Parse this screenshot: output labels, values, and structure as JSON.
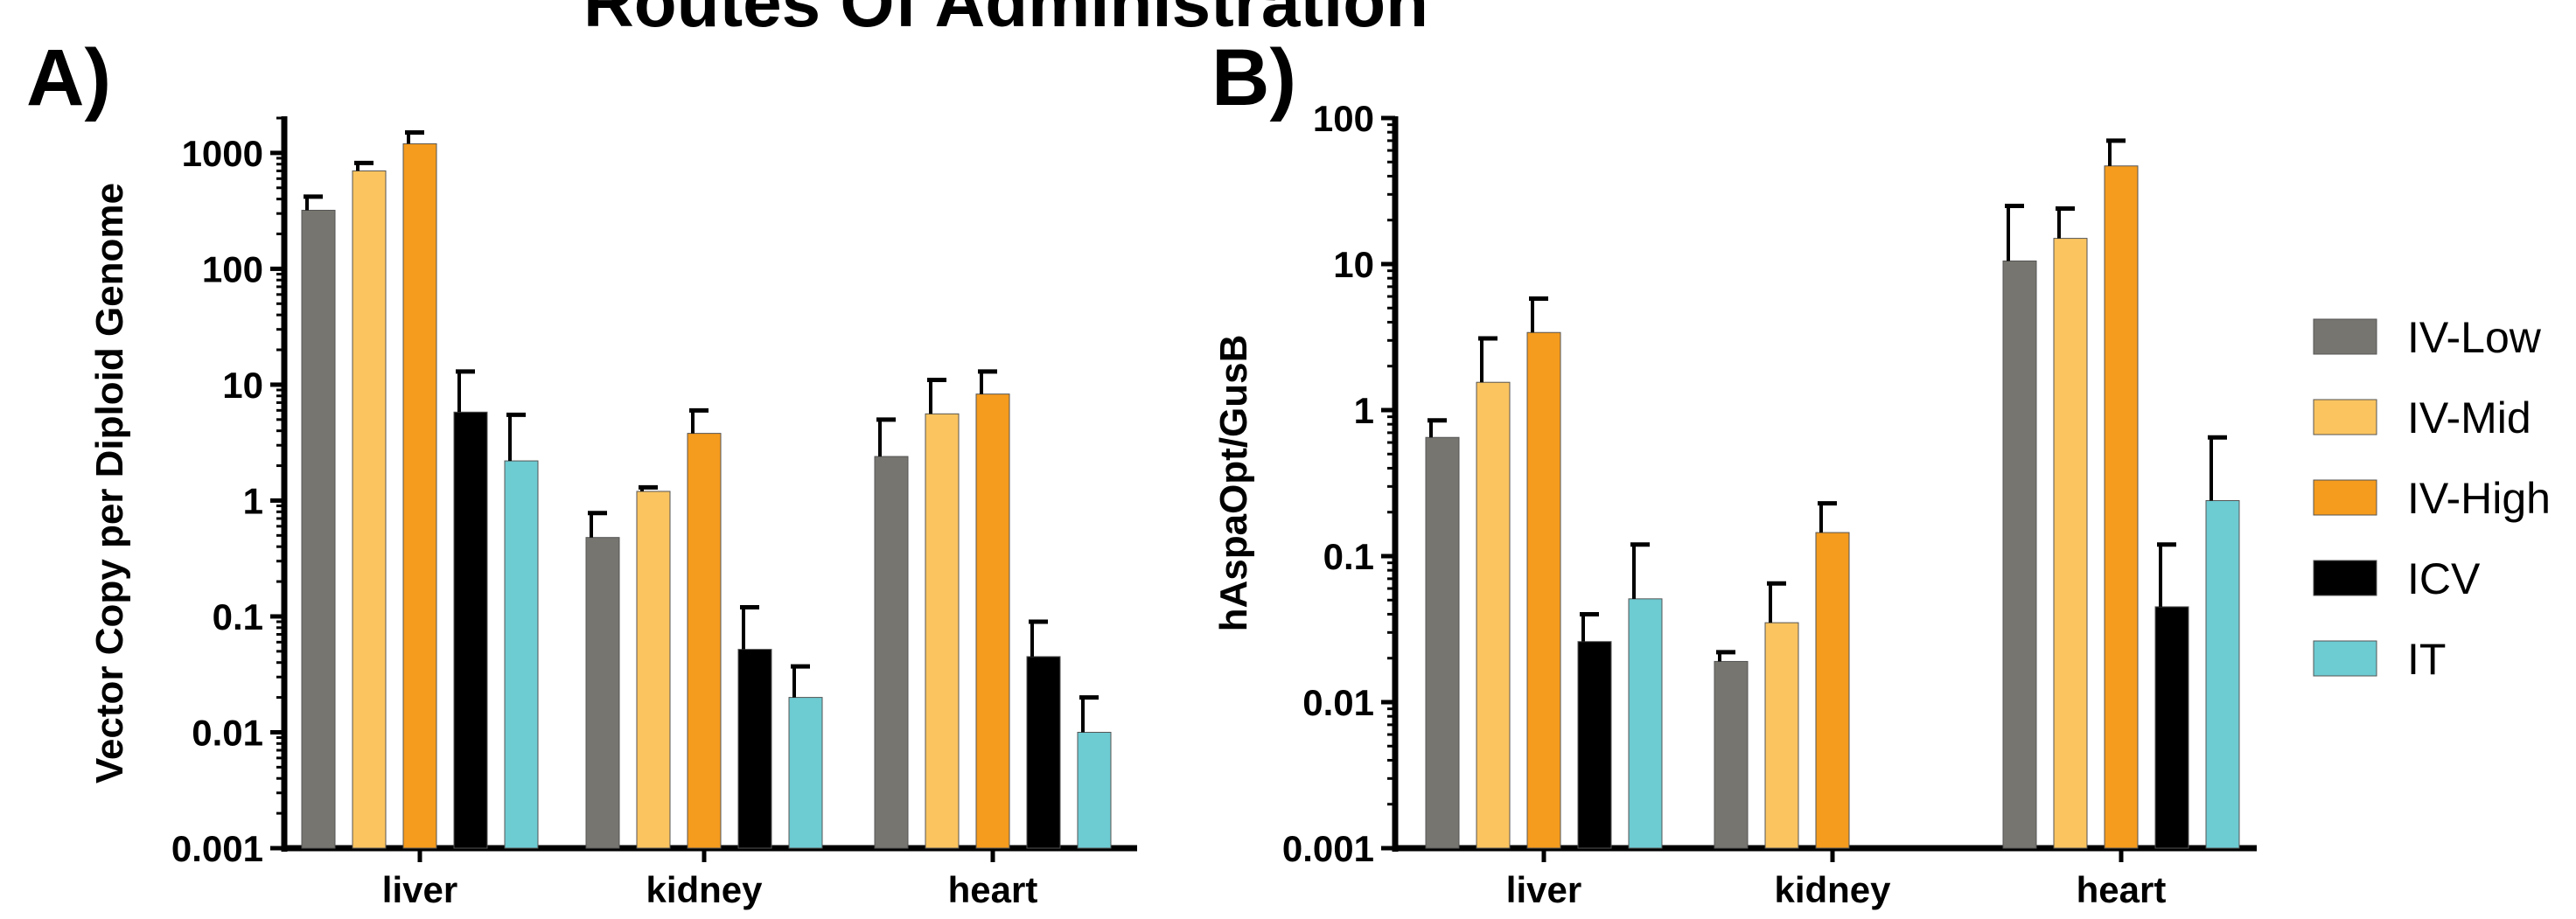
{
  "title": "Routes Of Administration",
  "colors": {
    "IV-Low": "#76756f",
    "IV-Mid": "#fbc45f",
    "IV-High": "#f59b1d",
    "ICV": "#000000",
    "IT": "#6dcbd2"
  },
  "legend": [
    "IV-Low",
    "IV-Mid",
    "IV-High",
    "ICV",
    "IT"
  ],
  "chart_data": [
    {
      "type": "bar",
      "panel_label": "A)",
      "scale": "log",
      "ylabel": "Vector Copy per Diploid Genome",
      "ylim": [
        0.001,
        2000
      ],
      "yticks": [
        "0.001",
        "0.01",
        "0.1",
        "1",
        "10",
        "100",
        "1000"
      ],
      "categories": [
        "liver",
        "kidney",
        "heart"
      ],
      "series": [
        {
          "name": "IV-Low",
          "values": [
            320,
            0.48,
            2.4
          ],
          "errors": [
            420,
            0.78,
            5.0
          ]
        },
        {
          "name": "IV-Mid",
          "values": [
            700,
            1.2,
            5.6
          ],
          "errors": [
            820,
            1.3,
            11
          ]
        },
        {
          "name": "IV-High",
          "values": [
            1200,
            3.8,
            8.3
          ],
          "errors": [
            1500,
            6.0,
            13
          ]
        },
        {
          "name": "ICV",
          "values": [
            5.8,
            0.052,
            0.045
          ],
          "errors": [
            13,
            0.12,
            0.09
          ]
        },
        {
          "name": "IT",
          "values": [
            2.2,
            0.02,
            0.01
          ],
          "errors": [
            5.5,
            0.037,
            0.02
          ]
        }
      ]
    },
    {
      "type": "bar",
      "panel_label": "B)",
      "scale": "log",
      "ylabel": "hAspaOpt/GusB",
      "ylim": [
        0.001,
        100
      ],
      "yticks": [
        "0.001",
        "0.01",
        "0.1",
        "1",
        "10",
        "100"
      ],
      "categories": [
        "liver",
        "kidney",
        "heart"
      ],
      "series": [
        {
          "name": "IV-Low",
          "values": [
            0.65,
            0.019,
            10.5
          ],
          "errors": [
            0.85,
            0.022,
            25
          ]
        },
        {
          "name": "IV-Mid",
          "values": [
            1.55,
            0.035,
            15
          ],
          "errors": [
            3.1,
            0.065,
            24
          ]
        },
        {
          "name": "IV-High",
          "values": [
            3.4,
            0.145,
            47
          ],
          "errors": [
            5.8,
            0.23,
            70
          ]
        },
        {
          "name": "ICV",
          "values": [
            0.026,
            null,
            0.045
          ],
          "errors": [
            0.04,
            null,
            0.12
          ]
        },
        {
          "name": "IT",
          "values": [
            0.051,
            null,
            0.24
          ],
          "errors": [
            0.12,
            null,
            0.65
          ]
        }
      ]
    }
  ]
}
